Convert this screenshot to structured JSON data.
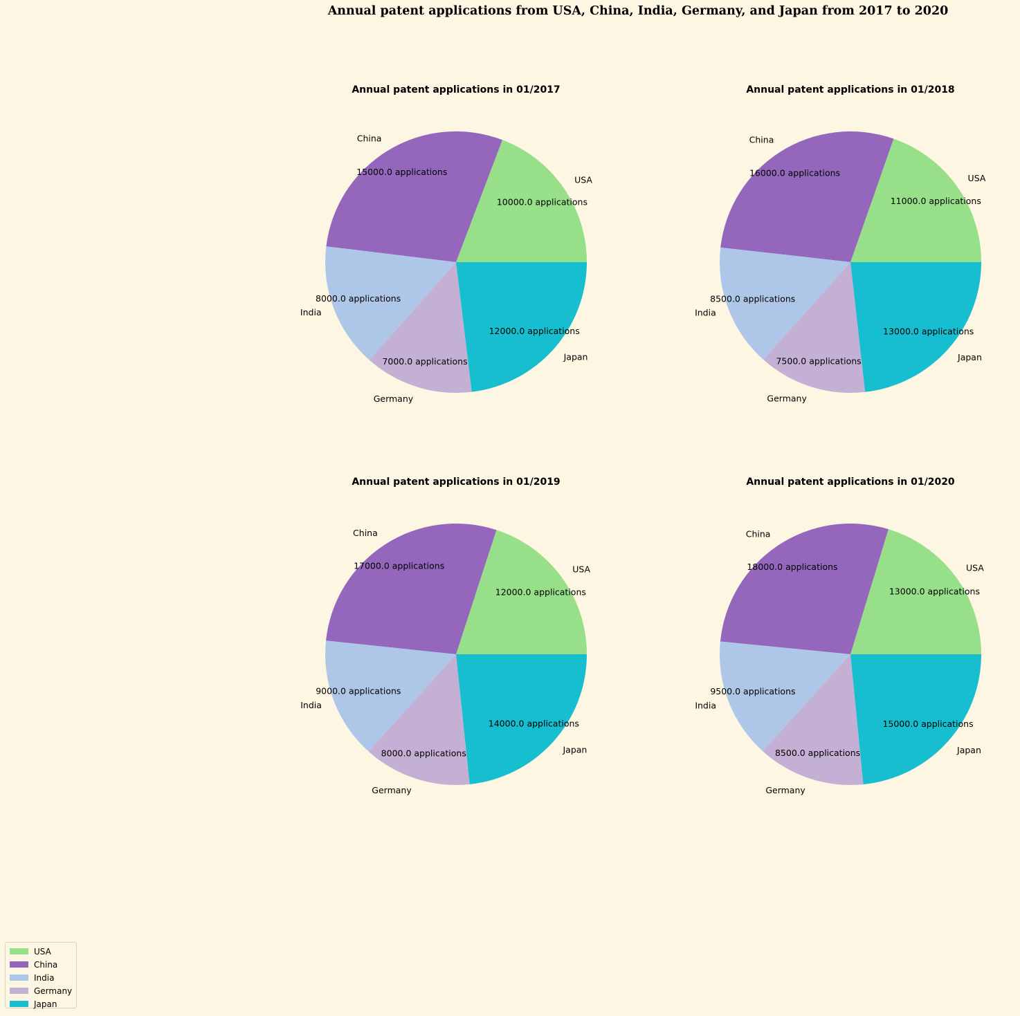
{
  "title": "Annual patent applications from USA, China, India, Germany, and Japan from 2017 to 2020",
  "colors": {
    "USA": "#98df8a",
    "China": "#9467bd",
    "India": "#aec7e8",
    "Germany": "#c5b0d5",
    "Japan": "#17becf"
  },
  "legend": {
    "items": [
      {
        "label": "USA",
        "color": "#98df8a"
      },
      {
        "label": "China",
        "color": "#9467bd"
      },
      {
        "label": "India",
        "color": "#aec7e8"
      },
      {
        "label": "Germany",
        "color": "#c5b0d5"
      },
      {
        "label": "Japan",
        "color": "#17becf"
      }
    ]
  },
  "chart_data": [
    {
      "type": "pie",
      "title": "Annual patent applications in 01/2017",
      "categories": [
        "USA",
        "China",
        "India",
        "Germany",
        "Japan"
      ],
      "values": [
        10000,
        15000,
        8000,
        7000,
        12000
      ],
      "data_labels": [
        "10000.0 applications",
        "15000.0 applications",
        "8000.0 applications",
        "7000.0 applications",
        "12000.0 applications"
      ]
    },
    {
      "type": "pie",
      "title": "Annual patent applications in 01/2018",
      "categories": [
        "USA",
        "China",
        "India",
        "Germany",
        "Japan"
      ],
      "values": [
        11000,
        16000,
        8500,
        7500,
        13000
      ],
      "data_labels": [
        "11000.0 applications",
        "16000.0 applications",
        "8500.0 applications",
        "7500.0 applications",
        "13000.0 applications"
      ]
    },
    {
      "type": "pie",
      "title": "Annual patent applications in 01/2019",
      "categories": [
        "USA",
        "China",
        "India",
        "Germany",
        "Japan"
      ],
      "values": [
        12000,
        17000,
        9000,
        8000,
        14000
      ],
      "data_labels": [
        "12000.0 applications",
        "17000.0 applications",
        "9000.0 applications",
        "8000.0 applications",
        "14000.0 applications"
      ]
    },
    {
      "type": "pie",
      "title": "Annual patent applications in 01/2020",
      "categories": [
        "USA",
        "China",
        "India",
        "Germany",
        "Japan"
      ],
      "values": [
        13000,
        18000,
        9500,
        8500,
        15000
      ],
      "data_labels": [
        "13000.0 applications",
        "18000.0 applications",
        "9500.0 applications",
        "8500.0 applications",
        "15000.0 applications"
      ]
    }
  ]
}
